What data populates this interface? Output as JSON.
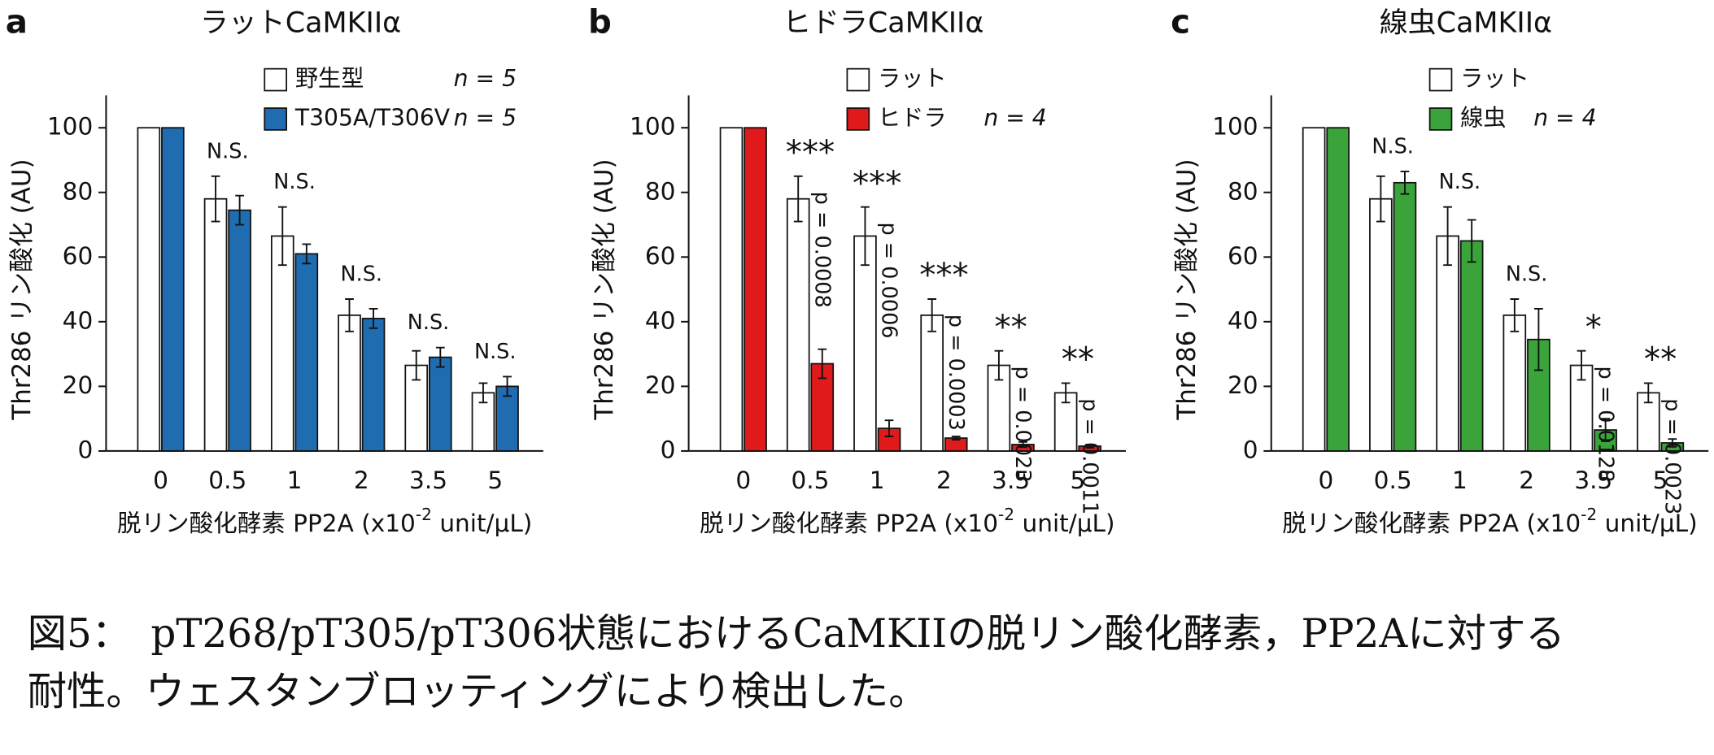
{
  "chart_data": [
    {
      "type": "bar",
      "panel": "a",
      "title": "ラットCaMKIIα",
      "ylabel": "Thr286 リン酸化 (AU)",
      "xlabel": [
        "脱リン酸化酵素 PP2A (x10",
        "-2",
        " unit/μL)"
      ],
      "categories": [
        "0",
        "0.5",
        "1",
        "2",
        "3.5",
        "5"
      ],
      "series": [
        {
          "name": "野生型",
          "color": "#ffffff",
          "values": [
            100,
            78,
            66.5,
            42,
            26.5,
            18
          ],
          "errors": [
            0,
            7,
            9,
            5,
            4.5,
            3
          ]
        },
        {
          "name": "T305A/T306V",
          "note": "n = 5",
          "color": "#1f6cb0",
          "values": [
            100,
            74.5,
            61,
            41,
            29,
            20
          ],
          "errors": [
            0,
            4.5,
            3,
            3,
            3,
            3
          ]
        }
      ],
      "legend_note": "n = 5",
      "significance": [
        null,
        "N.S.",
        "N.S.",
        "N.S.",
        "N.S.",
        "N.S."
      ],
      "p_values": [
        null,
        null,
        null,
        null,
        null,
        null
      ],
      "ylim": [
        0,
        110
      ],
      "yticks": [
        0,
        20,
        40,
        60,
        80,
        100
      ]
    },
    {
      "type": "bar",
      "panel": "b",
      "title": "ヒドラCaMKIIα",
      "ylabel": "Thr286 リン酸化 (AU)",
      "xlabel": [
        "脱リン酸化酵素 PP2A (x10",
        "-2",
        " unit/μL)"
      ],
      "categories": [
        "0",
        "0.5",
        "1",
        "2",
        "3.5",
        "5"
      ],
      "series": [
        {
          "name": "ラット",
          "color": "#ffffff",
          "values": [
            100,
            78,
            66.5,
            42,
            26.5,
            18
          ],
          "errors": [
            0,
            7,
            9,
            5,
            4.5,
            3
          ]
        },
        {
          "name": "ヒドラ",
          "note": "n = 4",
          "color": "#e0191b",
          "values": [
            100,
            27,
            7,
            4,
            2,
            1.5
          ],
          "errors": [
            0,
            4.5,
            2.5,
            0.5,
            0.8,
            0.5
          ]
        }
      ],
      "significance": [
        null,
        "***",
        "***",
        "***",
        "**",
        "**"
      ],
      "p_values": [
        null,
        "p = 0.0008",
        "p = 0.0006",
        "p = 0.0003",
        "p = 0.0023",
        "p = 0.0011"
      ],
      "ylim": [
        0,
        110
      ],
      "yticks": [
        0,
        20,
        40,
        60,
        80,
        100
      ]
    },
    {
      "type": "bar",
      "panel": "c",
      "title": "線虫CaMKIIα",
      "ylabel": "Thr286 リン酸化 (AU)",
      "xlabel": [
        "脱リン酸化酵素 PP2A (x10",
        "-2",
        " unit/μL)"
      ],
      "categories": [
        "0",
        "0.5",
        "1",
        "2",
        "3.5",
        "5"
      ],
      "series": [
        {
          "name": "ラット",
          "color": "#ffffff",
          "values": [
            100,
            78,
            66.5,
            42,
            26.5,
            18
          ],
          "errors": [
            0,
            7,
            9,
            5,
            4.5,
            3
          ]
        },
        {
          "name": "線虫",
          "note": "n = 4",
          "color": "#3aa43a",
          "values": [
            100,
            83,
            65,
            34.5,
            6.5,
            2.5
          ],
          "errors": [
            0,
            3.5,
            6.5,
            9.5,
            3.5,
            1.2
          ]
        }
      ],
      "significance": [
        null,
        "N.S.",
        "N.S.",
        "N.S.",
        "*",
        "**"
      ],
      "p_values": [
        null,
        null,
        null,
        null,
        "p = 0.0128",
        "p = 0.0023"
      ],
      "ylim": [
        0,
        110
      ],
      "yticks": [
        0,
        20,
        40,
        60,
        80,
        100
      ]
    }
  ],
  "caption": [
    "図5：　pT268/pT305/pT306状態におけるCaMKIIの脱リン酸化酵素，PP2Aに対する",
    "耐性。ウェスタンブロッティングにより検出した。"
  ]
}
